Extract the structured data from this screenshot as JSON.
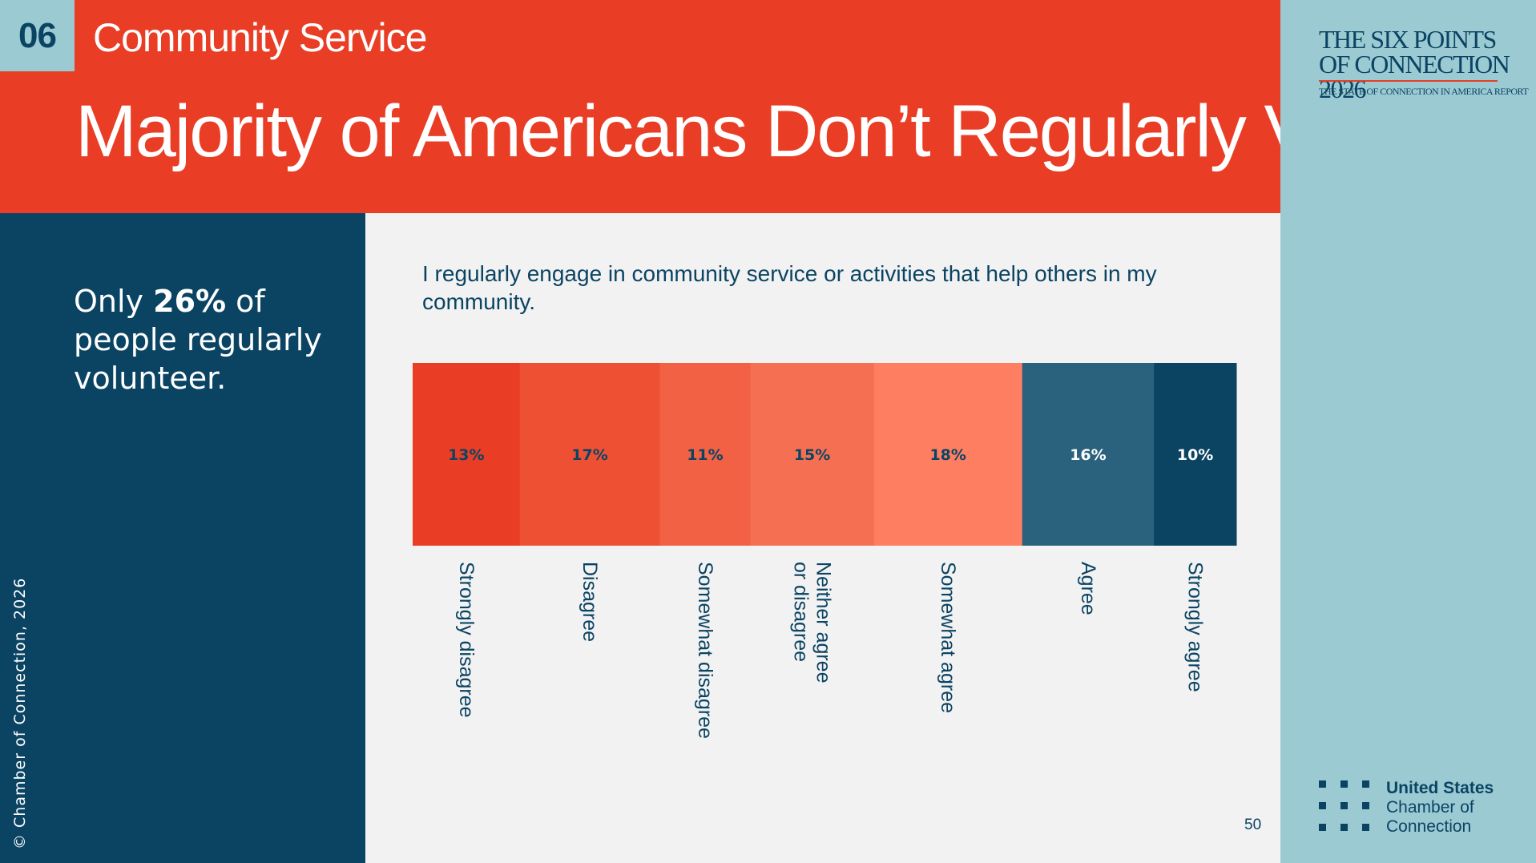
{
  "section": {
    "number": "06",
    "name": "Community Service"
  },
  "title": "Majority of Americans Don’t Regularly Volunteer",
  "report": {
    "title": "THE SIX POINTS OF CONNECTION 2026",
    "subtitle": "THE STATE OF CONNECTION IN AMERICA REPORT"
  },
  "stat": {
    "prefix": "Only ",
    "value": "26%",
    "suffix": " of people regularly volunteer."
  },
  "copyright": "© Chamber of Connection, 2026",
  "org": {
    "line1": "United States",
    "line2": "Chamber of",
    "line3": "Connection"
  },
  "page_number": "50",
  "colors": {
    "header_red": "#e93e25",
    "navy": "#0b4463",
    "light_blue": "#9bcad3"
  },
  "chart_data": {
    "type": "bar",
    "orientation": "stacked-horizontal-100",
    "title": "I regularly engage in community service or activities that help others in my community.",
    "categories": [
      "Strongly disagree",
      "Disagree",
      "Somewhat disagree",
      "Neither agree or disagree",
      "Somewhat agree",
      "Agree",
      "Strongly agree"
    ],
    "label_lines": [
      [
        "Strongly disagree"
      ],
      [
        "Disagree"
      ],
      [
        "Somewhat disagree"
      ],
      [
        "Neither agree",
        "or disagree"
      ],
      [
        "Somewhat agree"
      ],
      [
        "Agree"
      ],
      [
        "Strongly agree"
      ]
    ],
    "values": [
      13,
      17,
      11,
      15,
      18,
      16,
      10
    ],
    "value_labels": [
      "13%",
      "17%",
      "11%",
      "15%",
      "18%",
      "16%",
      "10%"
    ],
    "colors": [
      "#e93e25",
      "#ee5033",
      "#f26143",
      "#f57052",
      "#fe7e62",
      "#2a627d",
      "#0b4463"
    ],
    "label_colors": [
      "#0b4463",
      "#0b4463",
      "#0b4463",
      "#0b4463",
      "#0b4463",
      "#ffffff",
      "#ffffff"
    ],
    "unit": "%"
  }
}
